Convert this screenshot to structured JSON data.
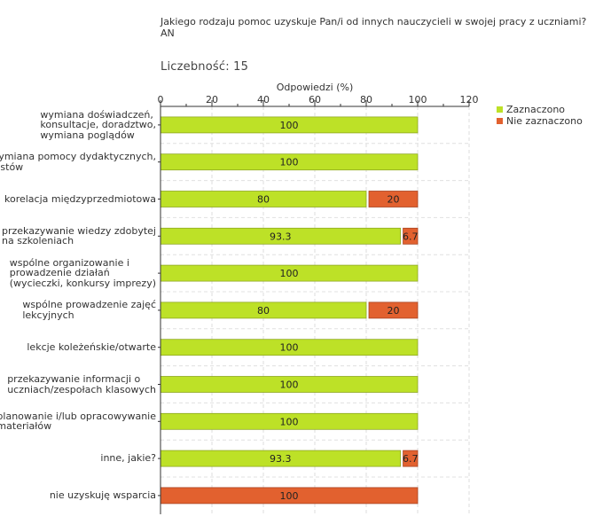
{
  "question": "Jakiego rodzaju pomoc uzyskuje Pan/i od innych nauczycieli w swojej pracy z uczniami? AN",
  "count": {
    "label": "Liczebność:",
    "value": "15"
  },
  "colors": {
    "selected": "#bde127",
    "not_selected": "#e2612f",
    "selected_border": "#8fa824",
    "not_selected_border": "#a84320"
  },
  "chart_data": {
    "type": "bar",
    "orientation": "horizontal",
    "stacked": true,
    "title": "Jakiego rodzaju pomoc uzyskuje Pan/i od innych nauczycieli w swojej pracy z uczniami? AN",
    "xlabel": "Odpowiedzi (%)",
    "xlim": [
      0,
      120
    ],
    "xticks": [
      0,
      20,
      40,
      60,
      80,
      100,
      120
    ],
    "categories": [
      "wymiana doświadczeń, konsultacje, doradztwo, wymiana poglądów",
      "wymiana pomocy dydaktycznych, testów",
      "korelacja międzyprzedmiotowa",
      "przekazywanie wiedzy zdobytej na szkoleniach",
      "wspólne organizowanie i prowadzenie działań (wycieczki, konkursy imprezy)",
      "wspólne prowadzenie zajęć lekcyjnych",
      "lekcje koleżeńskie/otwarte",
      "przekazywanie informacji o uczniach/zespołach klasowych",
      "planowanie i/lub opracowywanie materiałów",
      "inne, jakie?",
      "nie uzyskuję wsparcia"
    ],
    "category_lines": [
      [
        "wymiana doświadczeń,",
        "konsultacje, doradztwo,",
        "wymiana poglądów"
      ],
      [
        "wymiana pomocy dydaktycznych,",
        "testów"
      ],
      [
        "korelacja międzyprzedmiotowa"
      ],
      [
        "przekazywanie wiedzy zdobytej",
        "na szkoleniach"
      ],
      [
        "wspólne organizowanie i",
        "prowadzenie działań",
        "(wycieczki, konkursy imprezy)"
      ],
      [
        "wspólne prowadzenie zajęć",
        "lekcyjnych"
      ],
      [
        "lekcje koleżeńskie/otwarte"
      ],
      [
        "przekazywanie informacji o",
        "uczniach/zespołach klasowych"
      ],
      [
        "planowanie i/lub opracowywanie",
        "materiałów"
      ],
      [
        "inne, jakie?"
      ],
      [
        "nie uzyskuję wsparcia"
      ]
    ],
    "series": [
      {
        "name": "Zaznaczono",
        "values": [
          100,
          100,
          80,
          93.3,
          100,
          80,
          100,
          100,
          100,
          93.3,
          0
        ]
      },
      {
        "name": "Nie zaznaczono",
        "values": [
          0,
          0,
          20,
          6.7,
          0,
          20,
          0,
          0,
          0,
          6.7,
          100
        ]
      }
    ],
    "legend": [
      "Zaznaczono",
      "Nie zaznaczono"
    ],
    "legend_position": "top-right",
    "grid": true
  }
}
